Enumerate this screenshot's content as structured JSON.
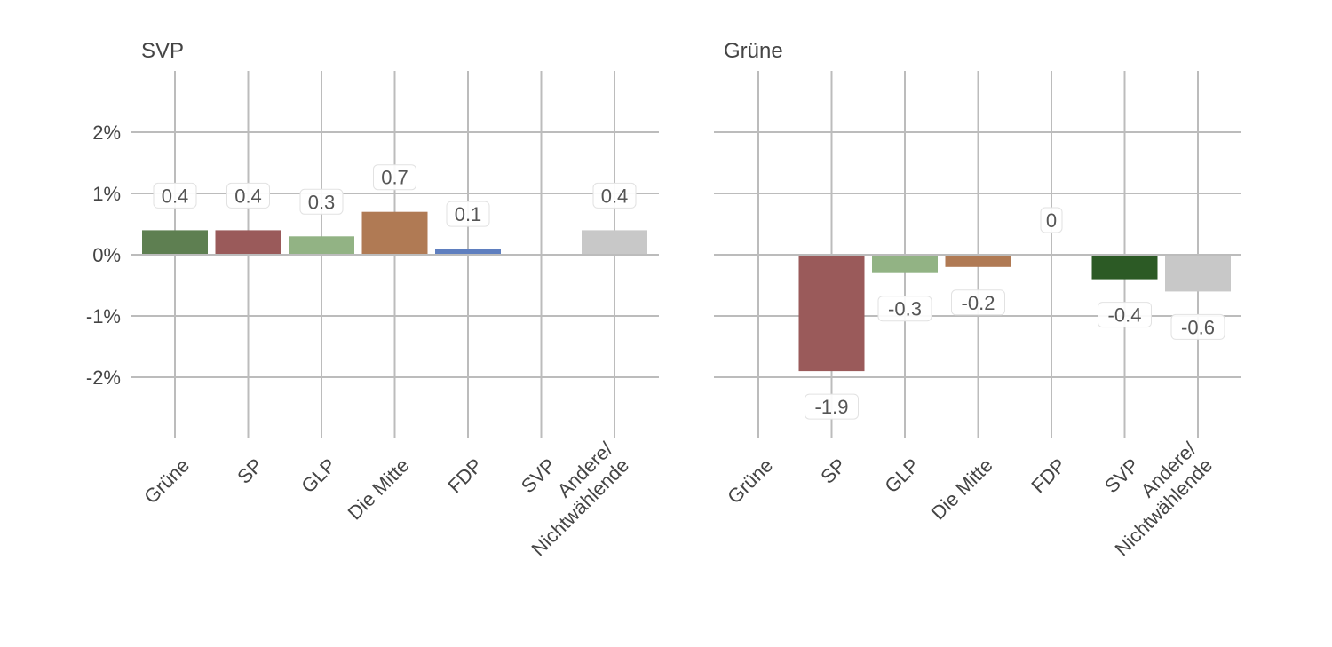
{
  "chart_data": [
    {
      "type": "bar",
      "title": "SVP",
      "categories": [
        "Grüne",
        "SP",
        "GLP",
        "Die Mitte",
        "FDP",
        "SVP",
        "Andere/\nNichtwählende"
      ],
      "values": [
        0.4,
        0.4,
        0.3,
        0.7,
        0.1,
        null,
        0.4
      ],
      "value_labels": [
        "0.4",
        "0.4",
        "0.3",
        "0.7",
        "0.1",
        "",
        "0.4"
      ],
      "colors": [
        "#5e7f51",
        "#9a5a5a",
        "#92b384",
        "#b07a54",
        "#5f7fbf",
        "#2c5a25",
        "#c8c8c8"
      ],
      "yticks": [
        -2,
        -1,
        0,
        1,
        2
      ],
      "ytick_labels": [
        "-2%",
        "-1%",
        "0%",
        "1%",
        "2%"
      ],
      "ylim": [
        -3,
        3
      ],
      "grid": true
    },
    {
      "type": "bar",
      "title": "Grüne",
      "categories": [
        "Grüne",
        "SP",
        "GLP",
        "Die Mitte",
        "FDP",
        "SVP",
        "Andere/\nNichtwählende"
      ],
      "values": [
        null,
        -1.9,
        -0.3,
        -0.2,
        0,
        -0.4,
        -0.6
      ],
      "value_labels": [
        "",
        "-1.9",
        "-0.3",
        "-0.2",
        "0",
        "-0.4",
        "-0.6"
      ],
      "colors": [
        "#5e7f51",
        "#9a5a5a",
        "#92b384",
        "#b07a54",
        "#5f7fbf",
        "#2c5a25",
        "#c8c8c8"
      ],
      "yticks": [
        -2,
        -1,
        0,
        1,
        2
      ],
      "ytick_labels": [
        "",
        "",
        "",
        "",
        ""
      ],
      "ylim": [
        -3,
        3
      ],
      "grid": true
    }
  ]
}
